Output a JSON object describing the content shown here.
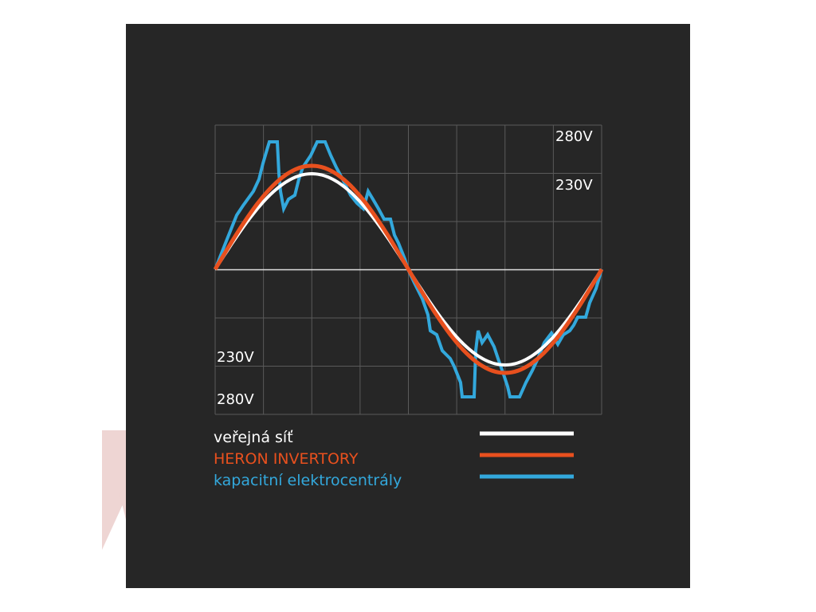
{
  "scale_labels": {
    "top_right": "280V",
    "upper_right": "230V",
    "lower_left": "230V",
    "bottom_left": "280V"
  },
  "legend": [
    {
      "label": "veřejná síť",
      "color": "#ffffff"
    },
    {
      "label": "HERON INVERTORY",
      "color": "#e8501e"
    },
    {
      "label": "kapacitní elektrocentrály",
      "color": "#33a8dc"
    }
  ]
}
